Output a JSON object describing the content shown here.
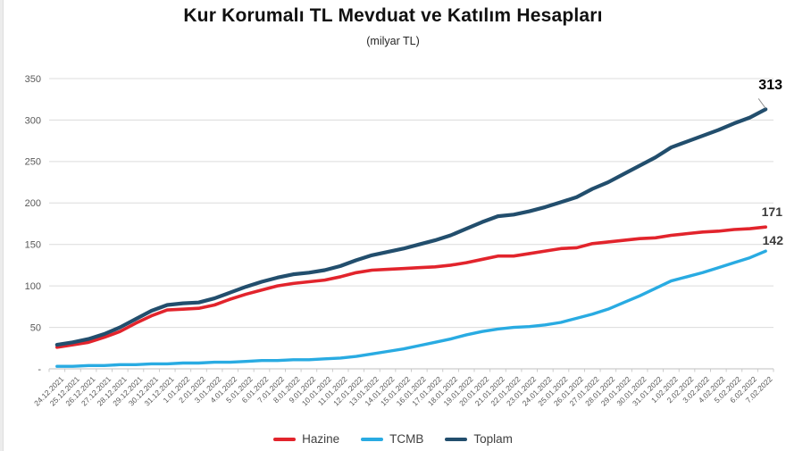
{
  "chart_data": {
    "type": "line",
    "title": "Kur Korumalı TL Mevduat ve Katılım Hesapları",
    "subtitle": "(milyar TL)",
    "ylim": [
      0,
      350
    ],
    "ytick_step": 50,
    "zero_label": "-",
    "grid": true,
    "legend_position": "bottom",
    "grid_color": "#dcdcdc",
    "axis_line_color": "#bfbfbf",
    "axis_label_color": "#595959",
    "categories": [
      "24.12.2021",
      "25.12.2021",
      "26.12.2021",
      "27.12.2021",
      "28.12.2021",
      "29.12.2021",
      "30.12.2021",
      "31.12.2021",
      "1.01.2022",
      "2.01.2022",
      "3.01.2022",
      "4.01.2022",
      "5.01.2022",
      "6.01.2022",
      "7.01.2022",
      "8.01.2022",
      "9.01.2022",
      "10.01.2022",
      "11.01.2022",
      "12.01.2022",
      "13.01.2022",
      "14.01.2022",
      "15.01.2022",
      "16.01.2022",
      "17.01.2022",
      "18.01.2022",
      "19.01.2022",
      "20.01.2022",
      "21.01.2022",
      "22.01.2022",
      "23.01.2022",
      "24.01.2022",
      "25.01.2022",
      "26.01.2022",
      "27.01.2022",
      "28.01.2022",
      "29.01.2022",
      "30.01.2022",
      "31.01.2022",
      "1.02.2022",
      "2.02.2022",
      "3.02.2022",
      "4.02.2022",
      "5.02.2022",
      "6.02.2022",
      "7.02.2022"
    ],
    "series": [
      {
        "name": "Hazine",
        "color": "#E2242C",
        "stroke_width": 3.6,
        "end_label": "171",
        "values": [
          26,
          29,
          32,
          38,
          45,
          55,
          64,
          71,
          72,
          73,
          77,
          84,
          90,
          95,
          100,
          103,
          105,
          107,
          111,
          116,
          119,
          120,
          121,
          122,
          123,
          125,
          128,
          132,
          136,
          136,
          139,
          142,
          145,
          146,
          151,
          153,
          155,
          157,
          158,
          161,
          163,
          165,
          166,
          168,
          169,
          171
        ]
      },
      {
        "name": "TCMB",
        "color": "#29ABE2",
        "stroke_width": 3.4,
        "end_label": "142",
        "values": [
          3,
          3,
          4,
          4,
          5,
          5,
          6,
          6,
          7,
          7,
          8,
          8,
          9,
          10,
          10,
          11,
          11,
          12,
          13,
          15,
          18,
          21,
          24,
          28,
          32,
          36,
          41,
          45,
          48,
          50,
          51,
          53,
          56,
          61,
          66,
          72,
          80,
          88,
          97,
          106,
          111,
          116,
          122,
          128,
          134,
          142
        ]
      },
      {
        "name": "Toplam",
        "color": "#224E6D",
        "stroke_width": 4.2,
        "end_label": "313",
        "values": [
          29,
          32,
          36,
          42,
          50,
          60,
          70,
          77,
          79,
          80,
          85,
          92,
          99,
          105,
          110,
          114,
          116,
          119,
          124,
          131,
          137,
          141,
          145,
          150,
          155,
          161,
          169,
          177,
          184,
          186,
          190,
          195,
          201,
          207,
          217,
          225,
          235,
          245,
          255,
          267,
          274,
          281,
          288,
          296,
          303,
          313
        ]
      }
    ]
  }
}
